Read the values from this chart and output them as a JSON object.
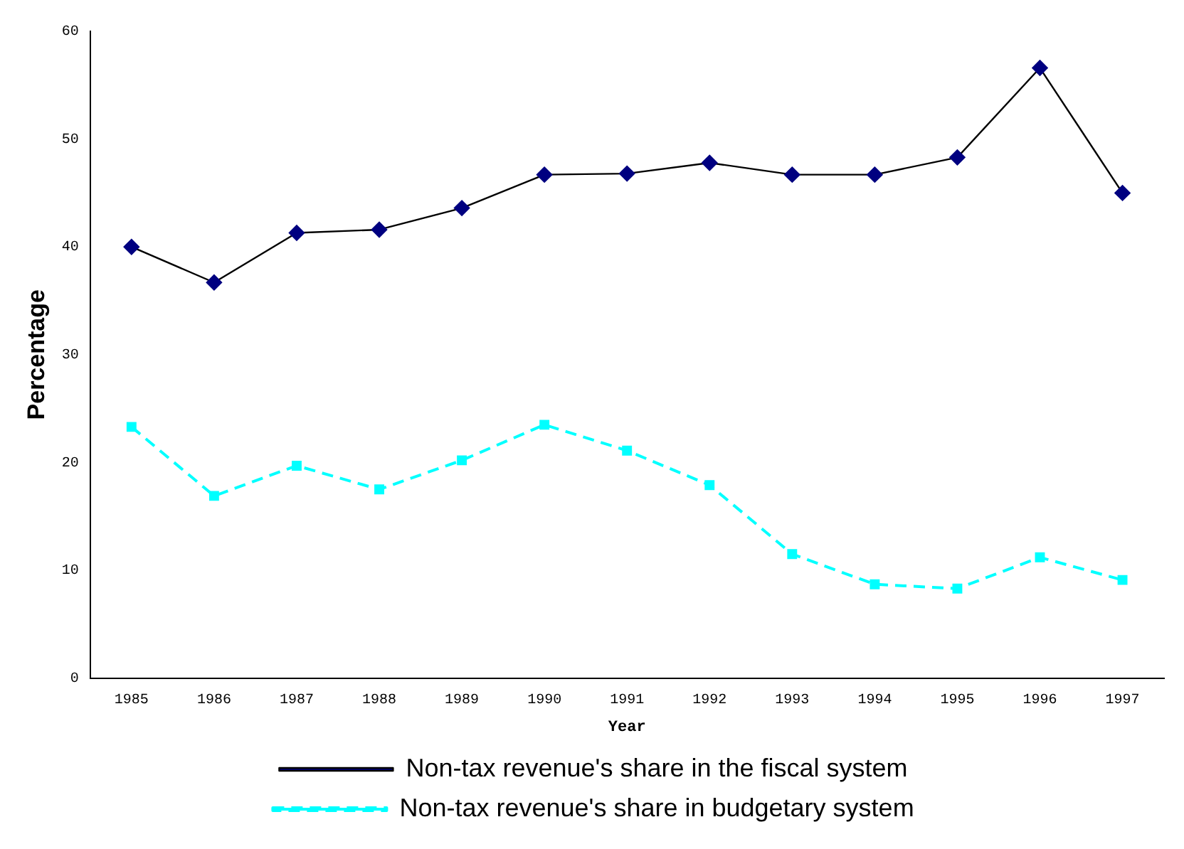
{
  "chart_data": {
    "type": "line",
    "xlabel": "Year",
    "ylabel": "Percentage",
    "categories": [
      "1985",
      "1986",
      "1987",
      "1988",
      "1989",
      "1990",
      "1991",
      "1992",
      "1993",
      "1994",
      "1995",
      "1996",
      "1997"
    ],
    "series": [
      {
        "name": "Non-tax revenue's share in the fiscal system",
        "color": "#000080",
        "marker": "diamond",
        "line_style": "solid",
        "values": [
          40.0,
          36.7,
          41.3,
          41.6,
          43.6,
          46.7,
          46.8,
          47.8,
          46.7,
          46.7,
          48.3,
          56.6,
          45.0
        ]
      },
      {
        "name": "Non-tax revenue's share in budgetary system",
        "color": "#00ffff",
        "marker": "square",
        "line_style": "dashed",
        "values": [
          23.3,
          16.9,
          19.7,
          17.5,
          20.2,
          23.5,
          21.1,
          17.9,
          11.5,
          8.7,
          8.3,
          11.2,
          9.1
        ]
      }
    ],
    "ylim": [
      0,
      60
    ],
    "yticks": [
      0,
      10,
      20,
      30,
      40,
      50,
      60
    ],
    "grid": false,
    "legend": "bottom"
  }
}
